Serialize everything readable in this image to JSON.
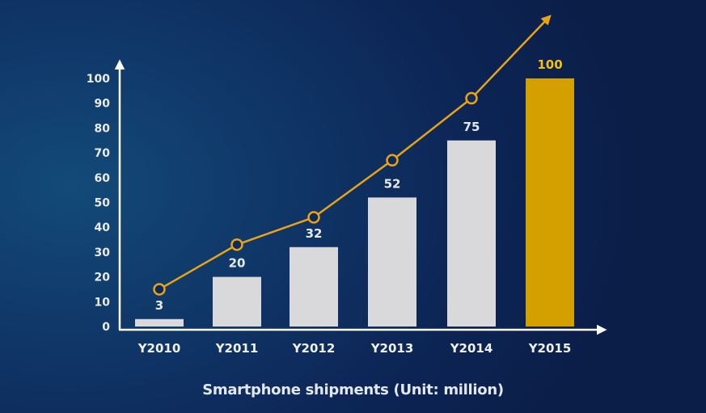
{
  "chart_data": {
    "type": "bar",
    "title": "Smartphone shipments (Unit: million)",
    "xlabel": "",
    "ylabel": "",
    "categories": [
      "Y2010",
      "Y2011",
      "Y2012",
      "Y2013",
      "Y2014",
      "Y2015"
    ],
    "values": [
      3,
      20,
      32,
      52,
      75,
      100
    ],
    "value_labels": [
      "3",
      "20",
      "32",
      "52",
      "75",
      "100"
    ],
    "highlight_index": 5,
    "ylim": [
      0,
      100
    ],
    "yticks": [
      0,
      10,
      20,
      30,
      40,
      50,
      60,
      70,
      80,
      90,
      100
    ],
    "grid": false,
    "legend": null,
    "trend_line": {
      "description": "Decorative growth trend line with circular markers above each bar, ending in an arrow",
      "points_approx": [
        15,
        33,
        44,
        67,
        92
      ],
      "arrow": true
    }
  },
  "colors": {
    "bar": "#d9d9db",
    "bar_highlight": "#d4a000",
    "trend_line": "#e8a317",
    "highlight_label": "#f2c20c",
    "axis": "#ffffff",
    "text": "#e8ecf2"
  },
  "caption": "Smartphone shipments (Unit: million)"
}
